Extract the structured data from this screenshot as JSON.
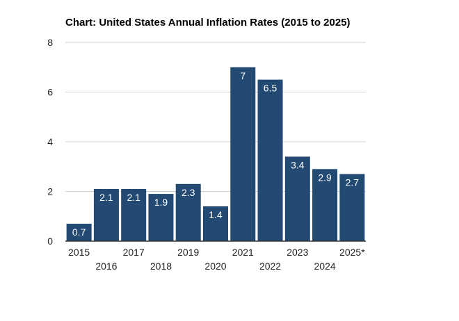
{
  "chart_data": {
    "type": "bar",
    "title": "Chart: United States Annual Inflation Rates (2015 to 2025)",
    "xlabel": "",
    "ylabel": "",
    "ylim": [
      0,
      8
    ],
    "yticks": [
      0,
      2,
      4,
      6,
      8
    ],
    "grid": true,
    "categories": [
      "2015",
      "2016",
      "2017",
      "2018",
      "2019",
      "2020",
      "2021",
      "2022",
      "2023",
      "2024",
      "2025*"
    ],
    "values": [
      0.7,
      2.1,
      2.1,
      1.9,
      2.3,
      1.4,
      7,
      6.5,
      3.4,
      2.9,
      2.7
    ],
    "data_labels": [
      "0.7",
      "2.1",
      "2.1",
      "1.9",
      "2.3",
      "1.4",
      "7",
      "6.5",
      "3.4",
      "2.9",
      "2.7"
    ],
    "bar_color": "#234a72",
    "grid_color": "#d0d0d0",
    "axis_color": "#333333"
  }
}
